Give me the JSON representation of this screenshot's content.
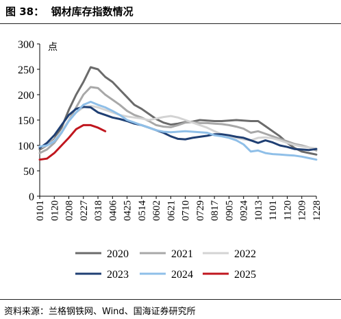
{
  "header": {
    "figure_label": "图 38：",
    "title": "钢材库存指数情况"
  },
  "footer": {
    "source": "资料来源：兰格钢铁网、Wind、国海证券研究所"
  },
  "chart_data": {
    "type": "line",
    "title": "钢材库存指数情况",
    "ylabel": "点",
    "xlabel": "",
    "ylim": [
      0,
      300
    ],
    "yticks": [
      0,
      50,
      100,
      150,
      200,
      250,
      300
    ],
    "xtick_labels": [
      "0101",
      "0120",
      "0208",
      "0227",
      "0318",
      "0406",
      "0425",
      "0514",
      "0602",
      "0621",
      "0710",
      "0729",
      "0817",
      "0905",
      "0924",
      "1013",
      "1101",
      "1120",
      "1209",
      "1228"
    ],
    "grid": false,
    "legend_position": "bottom",
    "series": [
      {
        "name": "2020",
        "color": "#6b6b6b",
        "x": [
          0,
          0.5,
          1,
          1.5,
          2,
          2.5,
          3,
          3.5,
          4,
          4.5,
          5,
          5.5,
          6,
          6.5,
          7,
          7.5,
          8,
          8.5,
          9,
          9.5,
          10,
          10.5,
          11,
          11.5,
          12,
          12.5,
          13,
          13.5,
          14,
          14.5,
          15,
          15.5,
          16,
          16.5,
          17,
          17.5,
          18,
          18.5,
          19
        ],
        "y": [
          92,
          100,
          112,
          135,
          170,
          200,
          225,
          254,
          250,
          235,
          225,
          210,
          195,
          180,
          172,
          162,
          152,
          145,
          141,
          143,
          146,
          147,
          150,
          149,
          148,
          148,
          149,
          150,
          149,
          148,
          148,
          138,
          128,
          118,
          105,
          95,
          88,
          85,
          82
        ]
      },
      {
        "name": "2021",
        "color": "#a8a8a8",
        "x": [
          0,
          0.5,
          1,
          1.5,
          2,
          2.5,
          3,
          3.5,
          4,
          4.5,
          5,
          5.5,
          6,
          6.5,
          7,
          7.5,
          8,
          8.5,
          9,
          9.5,
          10,
          10.5,
          11,
          11.5,
          12,
          12.5,
          13,
          13.5,
          14,
          14.5,
          15,
          15.5,
          16,
          16.5,
          17,
          17.5,
          18,
          18.5,
          19
        ],
        "y": [
          85,
          92,
          105,
          125,
          150,
          175,
          200,
          215,
          213,
          200,
          190,
          180,
          168,
          160,
          155,
          148,
          140,
          137,
          136,
          140,
          145,
          146,
          144,
          144,
          143,
          142,
          140,
          137,
          133,
          125,
          128,
          123,
          118,
          113,
          108,
          103,
          100,
          96,
          90
        ]
      },
      {
        "name": "2022",
        "color": "#d3d3d3",
        "x": [
          0,
          0.5,
          1,
          1.5,
          2,
          2.5,
          3,
          3.5,
          4,
          4.5,
          5,
          5.5,
          6,
          6.5,
          7,
          7.5,
          8,
          8.5,
          9,
          9.5,
          10,
          10.5,
          11,
          11.5,
          12,
          12.5,
          13,
          13.5,
          14,
          14.5,
          15,
          15.5,
          16,
          16.5,
          17,
          17.5,
          18,
          18.5,
          19
        ],
        "y": [
          95,
          100,
          110,
          128,
          150,
          165,
          175,
          178,
          175,
          170,
          165,
          160,
          157,
          155,
          153,
          150,
          153,
          156,
          158,
          155,
          150,
          145,
          140,
          135,
          128,
          122,
          118,
          115,
          112,
          110,
          115,
          116,
          114,
          110,
          105,
          101,
          98,
          96,
          94
        ]
      },
      {
        "name": "2023",
        "color": "#1f3f73",
        "x": [
          0,
          0.5,
          1,
          1.5,
          2,
          2.5,
          3,
          3.5,
          4,
          4.5,
          5,
          5.5,
          6,
          6.5,
          7,
          7.5,
          8,
          8.5,
          9,
          9.5,
          10,
          10.5,
          11,
          11.5,
          12,
          12.5,
          13,
          13.5,
          14,
          14.5,
          15,
          15.5,
          16,
          16.5,
          17,
          17.5,
          18,
          18.5,
          19
        ],
        "y": [
          95,
          105,
          120,
          140,
          160,
          172,
          176,
          175,
          165,
          160,
          155,
          152,
          148,
          143,
          140,
          135,
          130,
          125,
          118,
          113,
          112,
          115,
          117,
          119,
          122,
          122,
          120,
          117,
          115,
          110,
          105,
          110,
          106,
          100,
          97,
          93,
          92,
          91,
          93
        ]
      },
      {
        "name": "2024",
        "color": "#8fbfe8",
        "x": [
          0,
          0.5,
          1,
          1.5,
          2,
          2.5,
          3,
          3.5,
          4,
          4.5,
          5,
          5.5,
          6,
          6.5,
          7,
          7.5,
          8,
          8.5,
          9,
          9.5,
          10,
          10.5,
          11,
          11.5,
          12,
          12.5,
          13,
          13.5,
          14,
          14.5,
          15,
          15.5,
          16,
          16.5,
          17,
          17.5,
          18,
          18.5,
          19
        ],
        "y": [
          98,
          100,
          108,
          125,
          148,
          165,
          180,
          186,
          180,
          175,
          168,
          160,
          150,
          145,
          140,
          135,
          130,
          127,
          126,
          127,
          128,
          127,
          126,
          125,
          120,
          118,
          115,
          110,
          102,
          88,
          90,
          85,
          83,
          82,
          81,
          80,
          78,
          75,
          72
        ]
      },
      {
        "name": "2025",
        "color": "#c0161e",
        "x": [
          0,
          0.5,
          1,
          1.5,
          2,
          2.5,
          3,
          3.5,
          4,
          4.5
        ],
        "y": [
          72,
          74,
          85,
          100,
          115,
          132,
          140,
          140,
          135,
          128
        ]
      }
    ]
  }
}
